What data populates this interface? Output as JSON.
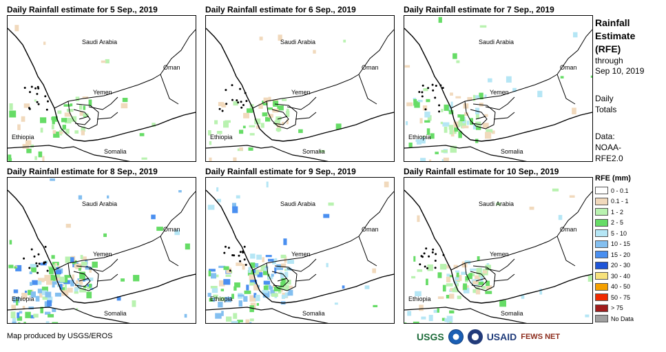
{
  "panels": [
    {
      "title": "Daily Rainfall estimate for 5 Sep., 2019",
      "rain_level": "light"
    },
    {
      "title": "Daily Rainfall estimate for 6 Sep., 2019",
      "rain_level": "light"
    },
    {
      "title": "Daily Rainfall estimate for 7 Sep., 2019",
      "rain_level": "moderate"
    },
    {
      "title": "Daily Rainfall estimate for 8 Sep., 2019",
      "rain_level": "heavy"
    },
    {
      "title": "Daily Rainfall estimate for 9 Sep., 2019",
      "rain_level": "heavy"
    },
    {
      "title": "Daily Rainfall estimate for 10 Sep., 2019",
      "rain_level": "moderate"
    }
  ],
  "map_labels": {
    "saudi": "Saudi Arabia",
    "oman": "Oman",
    "yemen": "Yemen",
    "ethiopia": "Ethiopia",
    "somalia": "Somalia"
  },
  "side": {
    "title1": "Rainfall",
    "title2": "Estimate",
    "title3": "(RFE)",
    "through": "through",
    "date": "Sep 10, 2019",
    "daily1": "Daily",
    "daily2": "Totals",
    "data1": "Data:",
    "data2": "NOAA-",
    "data3": "RFE2.0"
  },
  "legend": {
    "title": "RFE (mm)",
    "items": [
      {
        "label": "0 - 0.1",
        "color": "#ffffff"
      },
      {
        "label": "0.1 - 1",
        "color": "#f1d9bc"
      },
      {
        "label": "1 - 2",
        "color": "#b9f2b0"
      },
      {
        "label": "2 - 5",
        "color": "#66dc66"
      },
      {
        "label": "5 - 10",
        "color": "#b5e6f5"
      },
      {
        "label": "10 - 15",
        "color": "#83bff0"
      },
      {
        "label": "15 - 20",
        "color": "#4a8ff0"
      },
      {
        "label": "20 - 30",
        "color": "#1f55d8"
      },
      {
        "label": "30 - 40",
        "color": "#f7e27c"
      },
      {
        "label": "40 - 50",
        "color": "#f5a000"
      },
      {
        "label": "50 - 75",
        "color": "#f02a00"
      },
      {
        "label": "> 75",
        "color": "#a01c1c"
      },
      {
        "label": "No Data",
        "color": "#a0a0a0"
      }
    ]
  },
  "footer": {
    "credit": "Map produced by USGS/EROS",
    "usgs": "USGS",
    "usaid": "USAID",
    "fews": "FEWS NET"
  }
}
